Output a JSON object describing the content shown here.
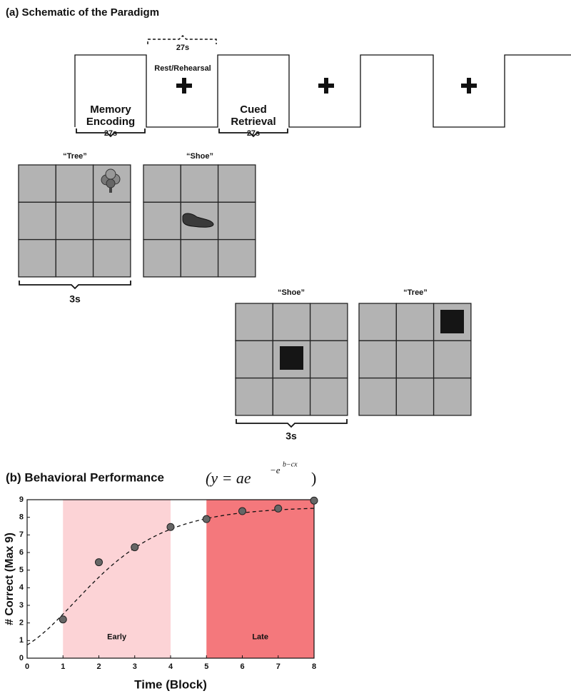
{
  "schematic": {
    "title": "(a) Schematic of the Paradigm",
    "rest_duration": "27s",
    "rest_label": "Rest/Rehearsal",
    "encoding_label": [
      "Memory",
      "Encoding"
    ],
    "encoding_duration": "27s",
    "retrieval_label": [
      "Cued",
      "Retrieval"
    ],
    "retrieval_duration": "27s",
    "encoding_cues": [
      "“Tree”",
      "“Shoe”"
    ],
    "encoding_trial_duration": "3s",
    "retrieval_cues": [
      "“Shoe”",
      "“Tree”"
    ],
    "retrieval_trial_duration": "3s"
  },
  "chart_data": {
    "type": "scatter",
    "title": "(b) Behavioral Performance",
    "formula": [
      "(y = ae",
      "−e",
      "b−cx",
      ")"
    ],
    "x_label": "Time (Block)",
    "y_label": "# Correct (Max 9)",
    "x": [
      1,
      2,
      3,
      4,
      5,
      6,
      7,
      8
    ],
    "values": [
      2.2,
      5.45,
      6.3,
      7.45,
      7.9,
      8.35,
      8.5,
      8.95
    ],
    "color": "#666666",
    "fit": {
      "a": 8.6,
      "b": 0.892,
      "c": 0.68,
      "color": "#111111"
    },
    "regions": [
      {
        "name": "Early",
        "range": [
          1,
          4
        ],
        "color": "#fcd3d6"
      },
      {
        "name": "Late",
        "range": [
          5,
          8
        ],
        "color": "#f4787c"
      }
    ],
    "xlim": [
      0,
      8
    ],
    "ylim": [
      0,
      9
    ],
    "xticks": [
      0,
      1,
      2,
      3,
      4,
      5,
      6,
      7,
      8
    ],
    "yticks": [
      0,
      1,
      2,
      3,
      4,
      5,
      6,
      7,
      8,
      9
    ],
    "grid": false
  }
}
